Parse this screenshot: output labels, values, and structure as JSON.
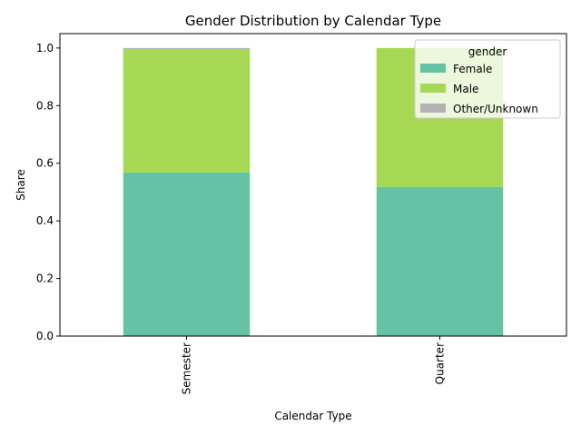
{
  "chart_data": {
    "type": "bar",
    "stacked": true,
    "title": "Gender Distribution by Calendar Type",
    "xlabel": "Calendar Type",
    "ylabel": "Share",
    "categories": [
      "Semester",
      "Quarter"
    ],
    "ylim": [
      0,
      1.05
    ],
    "yticks": [
      "0.0",
      "0.2",
      "0.4",
      "0.6",
      "0.8",
      "1.0"
    ],
    "grid": false,
    "legend": {
      "title": "gender",
      "placement": "top-right"
    },
    "series": [
      {
        "name": "Female",
        "color": "#66c2a5",
        "values": [
          0.568,
          0.518
        ]
      },
      {
        "name": "Male",
        "color": "#a6d854",
        "values": [
          0.428,
          0.482
        ]
      },
      {
        "name": "Other/Unknown",
        "color": "#b3b3b3",
        "values": [
          0.004,
          0.0
        ]
      }
    ]
  }
}
